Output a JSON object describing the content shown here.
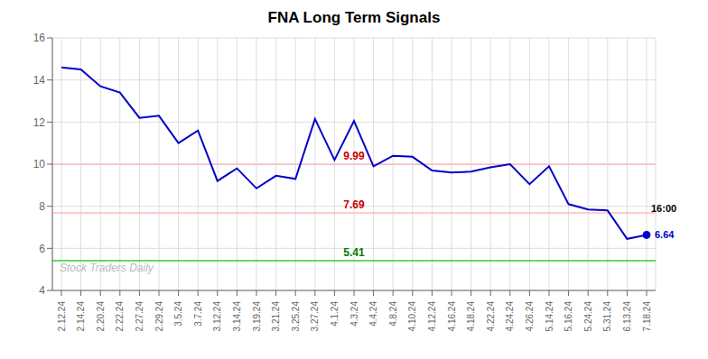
{
  "chart_data": {
    "type": "line",
    "title": "FNA Long Term Signals",
    "categories": [
      "2.12.24",
      "2.14.24",
      "2.20.24",
      "2.22.24",
      "2.27.24",
      "2.29.24",
      "3.5.24",
      "3.7.24",
      "3.12.24",
      "3.14.24",
      "3.19.24",
      "3.21.24",
      "3.25.24",
      "3.27.24",
      "4.1.24",
      "4.3.24",
      "4.4.24",
      "4.8.24",
      "4.10.24",
      "4.12.24",
      "4.16.24",
      "4.18.24",
      "4.22.24",
      "4.24.24",
      "4.26.24",
      "5.14.24",
      "5.16.24",
      "5.24.24",
      "5.31.24",
      "6.13.24",
      "7.18.24"
    ],
    "values": [
      14.6,
      14.5,
      13.7,
      13.4,
      12.2,
      12.3,
      11.0,
      11.6,
      9.2,
      9.8,
      8.85,
      9.45,
      9.3,
      12.15,
      10.2,
      12.05,
      9.9,
      10.4,
      10.35,
      9.7,
      9.6,
      9.65,
      9.85,
      10.0,
      9.05,
      9.9,
      8.1,
      7.85,
      7.8,
      6.45,
      6.64
    ],
    "color": "#0000cc",
    "ylim": [
      4,
      16
    ],
    "yticks": [
      4,
      6,
      8,
      10,
      12,
      14,
      16
    ],
    "grid": true,
    "reference_lines": [
      {
        "y": 9.99,
        "label": "9.99",
        "color": "#ffbbbb",
        "label_color": "#cc0000"
      },
      {
        "y": 7.69,
        "label": "7.69",
        "color": "#ffbbbb",
        "label_color": "#cc0000"
      },
      {
        "y": 5.41,
        "label": "5.41",
        "color": "#33cc33",
        "label_color": "#007700"
      }
    ],
    "annotations": [
      {
        "text": "16:00",
        "x": "7.18.24",
        "y": 7.9
      },
      {
        "text": "6.64",
        "x": "7.18.24",
        "y": 6.64,
        "color": "#0000cc",
        "marker": "circle"
      }
    ],
    "watermark": "Stock Traders Daily"
  }
}
